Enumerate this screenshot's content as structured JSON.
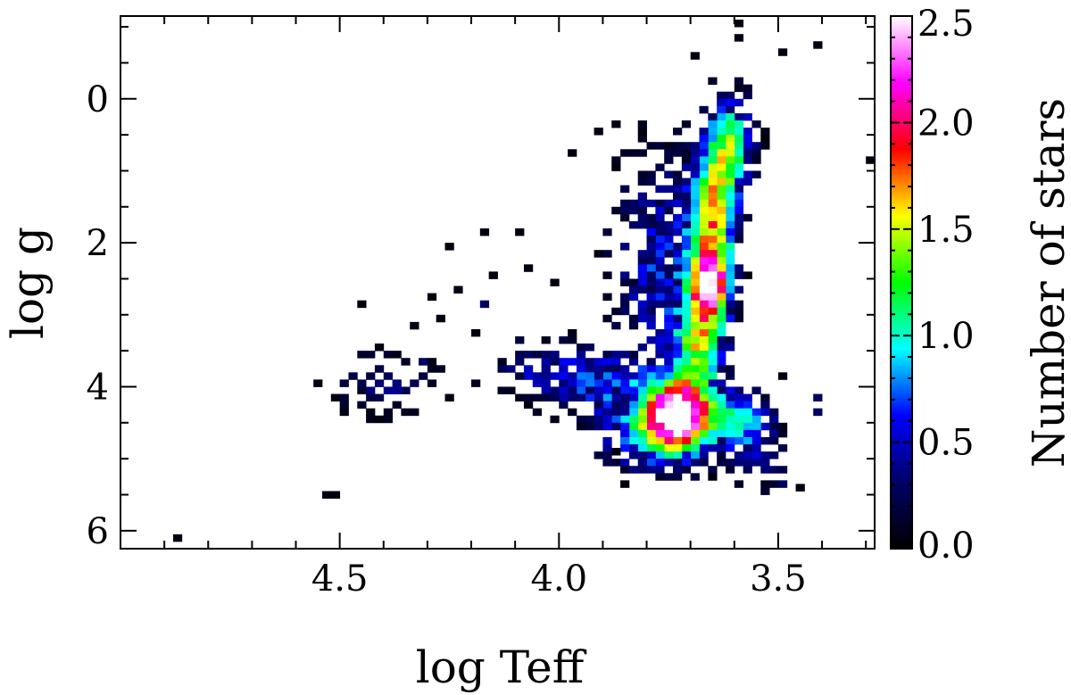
{
  "chart_data": {
    "type": "heatmap",
    "title": "",
    "xlabel": "log Teff",
    "ylabel": "log g",
    "colorbar_label": "Number of stars",
    "x_reversed": true,
    "y_reversed": true,
    "xlim": [
      5.0,
      3.28
    ],
    "ylim": [
      6.25,
      -1.15
    ],
    "x_ticks": [
      {
        "value": 4.5,
        "label": "4.5"
      },
      {
        "value": 4.0,
        "label": "4.0"
      },
      {
        "value": 3.5,
        "label": "3.5"
      }
    ],
    "y_ticks": [
      {
        "value": 0,
        "label": "0"
      },
      {
        "value": 2,
        "label": "2"
      },
      {
        "value": 4,
        "label": "4"
      },
      {
        "value": 6,
        "label": "6"
      }
    ],
    "colorbar_range": [
      0.0,
      2.5
    ],
    "colorbar_ticks": [
      {
        "value": 0.0,
        "label": "0.0"
      },
      {
        "value": 0.5,
        "label": "0.5"
      },
      {
        "value": 1.0,
        "label": "1.0"
      },
      {
        "value": 1.5,
        "label": "1.5"
      },
      {
        "value": 2.0,
        "label": "2.0"
      },
      {
        "value": 2.5,
        "label": "2.5"
      }
    ],
    "colormap": [
      "#000000",
      "#000066",
      "#0000ff",
      "#00ffff",
      "#00ff00",
      "#ffff00",
      "#ff0000",
      "#ff00ff",
      "#ffffff"
    ],
    "bin_size": [
      0.02,
      0.1
    ],
    "density_features": [
      {
        "logTeff": 3.74,
        "logg": 4.3,
        "value": 2.45,
        "sigma_x": 0.045,
        "sigma_y": 0.28
      },
      {
        "logTeff": 3.665,
        "logg": 2.55,
        "value": 2.1,
        "sigma_x": 0.03,
        "sigma_y": 0.32
      },
      {
        "logTeff": 3.66,
        "logg": 1.6,
        "value": 1.5,
        "sigma_x": 0.035,
        "sigma_y": 0.6
      },
      {
        "logTeff": 3.62,
        "logg": 0.6,
        "value": 1.2,
        "sigma_x": 0.035,
        "sigma_y": 0.45
      },
      {
        "logTeff": 3.69,
        "logg": 3.4,
        "value": 1.3,
        "sigma_x": 0.04,
        "sigma_y": 0.45
      },
      {
        "logTeff": 3.78,
        "logg": 4.6,
        "value": 1.1,
        "sigma_x": 0.08,
        "sigma_y": 0.35
      },
      {
        "logTeff": 3.6,
        "logg": 4.4,
        "value": 1.0,
        "sigma_x": 0.05,
        "sigma_y": 0.25
      },
      {
        "logTeff": 3.9,
        "logg": 3.9,
        "value": 0.6,
        "sigma_x": 0.08,
        "sigma_y": 0.3
      },
      {
        "logTeff": 3.78,
        "logg": 2.2,
        "value": 0.6,
        "sigma_x": 0.07,
        "sigma_y": 1.0
      },
      {
        "logTeff": 4.05,
        "logg": 3.7,
        "value": 0.45,
        "sigma_x": 0.07,
        "sigma_y": 0.3
      },
      {
        "logTeff": 4.4,
        "logg": 3.9,
        "value": 0.35,
        "sigma_x": 0.1,
        "sigma_y": 0.3
      },
      {
        "logTeff": 3.55,
        "logg": 5.0,
        "value": 0.35,
        "sigma_x": 0.05,
        "sigma_y": 0.3
      }
    ],
    "isolated_points": [
      {
        "logTeff": 4.88,
        "logg": 6.05,
        "value": 0.05
      },
      {
        "logTeff": 4.54,
        "logg": 5.45,
        "value": 0.05
      },
      {
        "logTeff": 4.52,
        "logg": 5.45,
        "value": 0.05
      },
      {
        "logTeff": 3.3,
        "logg": 0.8,
        "value": 0.05
      },
      {
        "logTeff": 3.42,
        "logg": -0.8,
        "value": 0.05
      },
      {
        "logTeff": 3.6,
        "logg": -0.9,
        "value": 0.05
      },
      {
        "logTeff": 3.6,
        "logg": -1.1,
        "value": 0.05
      },
      {
        "logTeff": 3.7,
        "logg": -0.65,
        "value": 0.05
      },
      {
        "logTeff": 3.5,
        "logg": -0.7,
        "value": 0.05
      },
      {
        "logTeff": 3.88,
        "logg": 4.85,
        "value": 0.05
      },
      {
        "logTeff": 3.5,
        "logg": 3.8,
        "value": 0.05
      },
      {
        "logTeff": 3.42,
        "logg": 4.1,
        "value": 0.3
      },
      {
        "logTeff": 3.42,
        "logg": 4.3,
        "value": 0.3
      },
      {
        "logTeff": 3.46,
        "logg": 5.35,
        "value": 0.05
      },
      {
        "logTeff": 3.5,
        "logg": 5.3,
        "value": 0.3
      },
      {
        "logTeff": 4.26,
        "logg": 2.0,
        "value": 0.05
      },
      {
        "logTeff": 4.18,
        "logg": 1.8,
        "value": 0.05
      },
      {
        "logTeff": 4.1,
        "logg": 1.8,
        "value": 0.05
      },
      {
        "logTeff": 4.24,
        "logg": 2.6,
        "value": 0.05
      },
      {
        "logTeff": 4.16,
        "logg": 2.4,
        "value": 0.05
      },
      {
        "logTeff": 4.3,
        "logg": 2.7,
        "value": 0.05
      },
      {
        "logTeff": 4.18,
        "logg": 2.8,
        "value": 0.3
      },
      {
        "logTeff": 4.2,
        "logg": 3.2,
        "value": 0.05
      },
      {
        "logTeff": 4.28,
        "logg": 3.0,
        "value": 0.05
      },
      {
        "logTeff": 4.34,
        "logg": 3.1,
        "value": 0.05
      },
      {
        "logTeff": 4.42,
        "logg": 3.4,
        "value": 0.05
      },
      {
        "logTeff": 4.46,
        "logg": 2.8,
        "value": 0.05
      },
      {
        "logTeff": 4.32,
        "logg": 3.6,
        "value": 0.3
      },
      {
        "logTeff": 4.08,
        "logg": 2.3,
        "value": 0.05
      },
      {
        "logTeff": 4.02,
        "logg": 2.5,
        "value": 0.05
      },
      {
        "logTeff": 3.98,
        "logg": 0.7,
        "value": 0.05
      },
      {
        "logTeff": 3.92,
        "logg": 0.4,
        "value": 0.05
      },
      {
        "logTeff": 3.88,
        "logg": 0.3,
        "value": 0.05
      }
    ]
  }
}
